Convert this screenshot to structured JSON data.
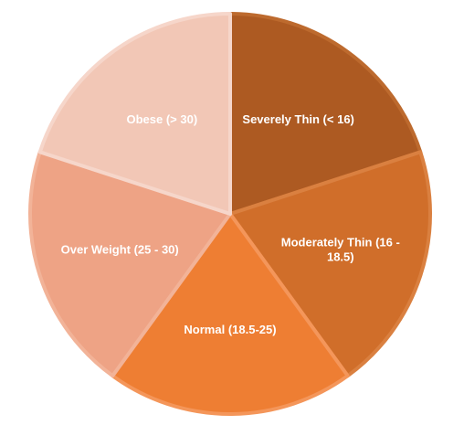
{
  "chart_data": {
    "type": "pie",
    "title": "",
    "start_angle_deg": 0,
    "direction": "clockwise",
    "legend": "none",
    "slices": [
      {
        "label": "Severely Thin (< 16)",
        "label_lines": [
          "Severely Thin (< 16)"
        ],
        "value": 20,
        "color": "#AD5A22",
        "stroke": "#BD6A2E"
      },
      {
        "label": "Moderately Thin (16 - 18.5)",
        "label_lines": [
          "Moderately Thin (16 -",
          "18.5)"
        ],
        "value": 20,
        "color": "#D06E2A",
        "stroke": "#DA8040"
      },
      {
        "label": "Normal (18.5-25)",
        "label_lines": [
          "Normal (18.5-25)"
        ],
        "value": 20,
        "color": "#EE7E33",
        "stroke": "#F4965A"
      },
      {
        "label": "Over Weight (25 - 30)",
        "label_lines": [
          "Over Weight (25 - 30)"
        ],
        "value": 20,
        "color": "#EEA385",
        "stroke": "#F2B398"
      },
      {
        "label": "Obese (> 30)",
        "label_lines": [
          "Obese (> 30)"
        ],
        "value": 20,
        "color": "#F2C7B6",
        "stroke": "#F6D6CA"
      }
    ]
  }
}
